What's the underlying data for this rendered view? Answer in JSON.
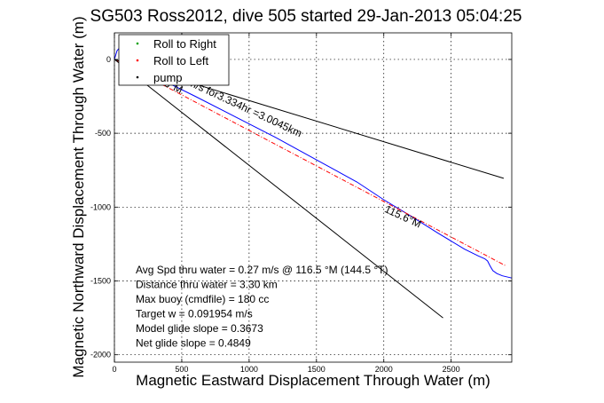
{
  "chart_data": {
    "type": "line",
    "title": "SG503 Ross2012, dive 505 started 29-Jan-2013 05:04:25",
    "xlabel": "Magnetic Eastward Displacement Through Water (m)",
    "ylabel": "Magnetic Northward Displacement Through Water (m)",
    "xlim": [
      0,
      2950
    ],
    "ylim": [
      -2050,
      180
    ],
    "x_ticks": [
      0,
      500,
      1000,
      1500,
      2000,
      2500
    ],
    "y_ticks": [
      0,
      -500,
      -1000,
      -1500,
      -2000
    ],
    "x_tick_labels": [
      "0",
      "500",
      "1000",
      "1500",
      "2000",
      "2500"
    ],
    "y_tick_labels": [
      "0",
      "-500",
      "-1000",
      "-1500",
      "-2000"
    ],
    "grid": true,
    "legend": {
      "position": "top-left",
      "entries": [
        {
          "label": "Roll to Right",
          "color": "#00a000",
          "marker": "."
        },
        {
          "label": "Roll to Left",
          "color": "#ff0000",
          "marker": "."
        },
        {
          "label": "pump",
          "color": "#000000",
          "marker": "."
        }
      ]
    },
    "series": [
      {
        "color": "#0000ff",
        "style": "solid",
        "x": [
          0,
          20,
          40,
          60,
          300,
          600,
          900,
          1200,
          1500,
          1800,
          2000,
          2200,
          2400,
          2600,
          2700,
          2750,
          2770,
          2790,
          2810,
          2840,
          2880,
          2950
        ],
        "y": [
          0,
          60,
          80,
          20,
          -115,
          -250,
          -390,
          -530,
          -680,
          -830,
          -950,
          -1060,
          -1175,
          -1285,
          -1330,
          -1350,
          -1365,
          -1400,
          -1430,
          -1450,
          -1465,
          -1480
        ]
      },
      {
        "color": "#ff0000",
        "style": "dashdot",
        "x": [
          0,
          2900
        ],
        "y": [
          0,
          -1395
        ]
      },
      {
        "color": "#000000",
        "style": "solid",
        "x": [
          0,
          2890
        ],
        "y": [
          0,
          -805
        ]
      },
      {
        "color": "#000000",
        "style": "solid",
        "x": [
          0,
          2440
        ],
        "y": [
          0,
          -1750
        ]
      }
    ],
    "annotations": [
      {
        "text": "0.25032m/s for3.334hr =3.0045km",
        "x": 280,
        "y": -60,
        "angle": 25
      },
      {
        "text": "115.6°M",
        "x": 230,
        "y": -120,
        "angle": 25
      },
      {
        "text": "115.6°M",
        "x": 2000,
        "y": -1030,
        "angle": 25
      }
    ],
    "stats": [
      "Avg Spd thru water =  0.27 m/s @ 116.5    °M (144.5 °T)",
      "Distance thru water =  3.30 km",
      "Max buoy (cmdfile) = 180 cc",
      "Target w = 0.091954 m/s",
      "Model glide slope = 0.3673",
      "Net glide slope = 0.4849"
    ]
  }
}
